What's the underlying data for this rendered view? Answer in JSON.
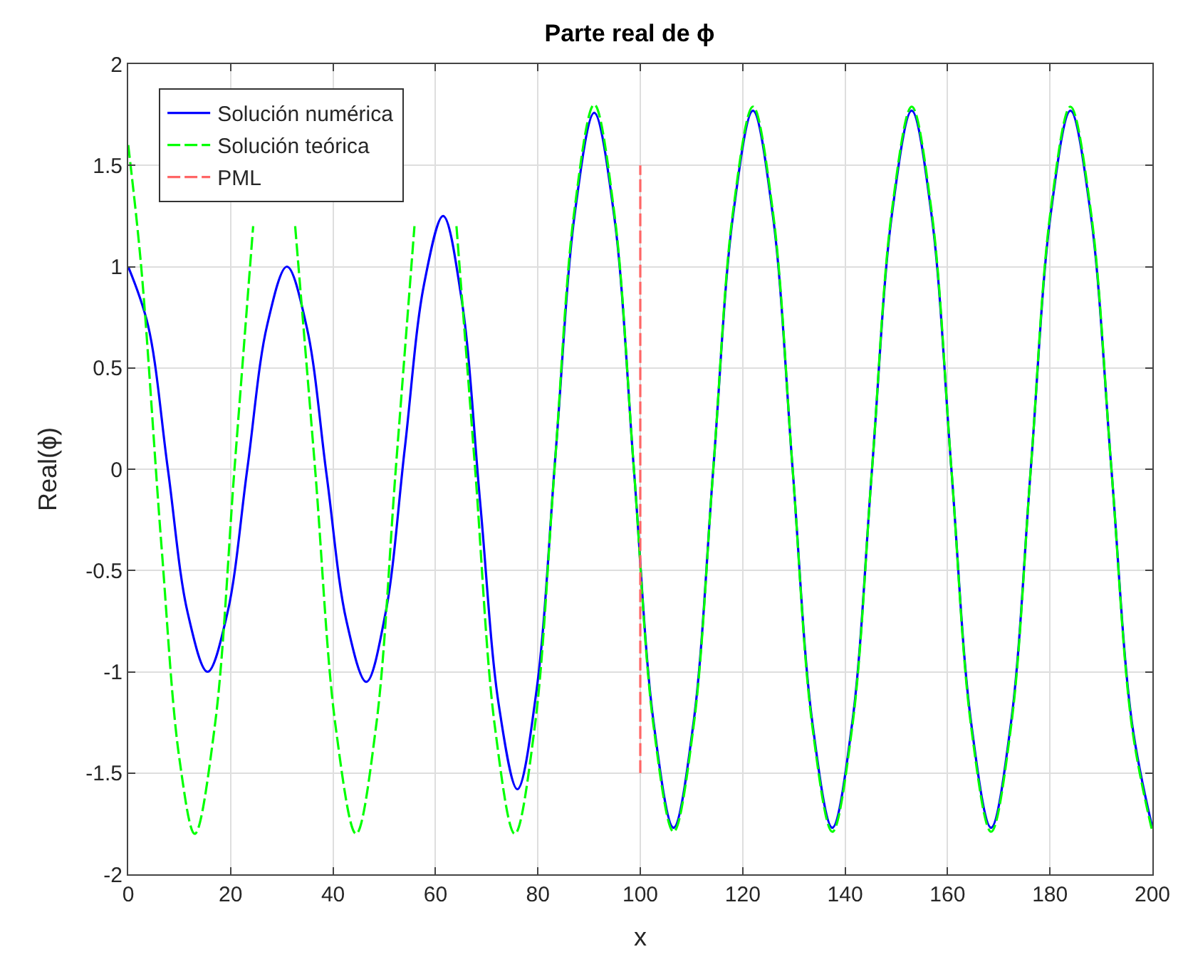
{
  "chart_data": {
    "type": "line",
    "title": "Parte real de ϕ",
    "xlabel": "x",
    "ylabel": "Real(ϕ)",
    "xlim": [
      0,
      200
    ],
    "ylim": [
      -2,
      2
    ],
    "xticks": [
      0,
      20,
      40,
      60,
      80,
      100,
      120,
      140,
      160,
      180,
      200
    ],
    "yticks": [
      -2,
      -1.5,
      -1,
      -0.5,
      0,
      0.5,
      1,
      1.5,
      2
    ],
    "grid": true,
    "legend": "top left",
    "marker": "none",
    "series": [
      {
        "name": "Solución numérica",
        "color": "#0000ff",
        "line_style": "solid",
        "x": [
          0,
          3.875,
          7.75,
          11.625,
          15.5,
          19.375,
          23.25,
          27.125,
          31,
          34.875,
          38.75,
          42.625,
          46.5,
          50.25,
          54,
          57.75,
          61.5,
          65.1,
          68.75,
          72.4,
          76,
          79.75,
          83.5,
          87.25,
          91,
          94.9,
          98.75,
          102.6,
          106.5,
          110.4,
          114.25,
          118.1,
          122,
          125.9,
          129.75,
          133.6,
          137.5,
          141.4,
          145.25,
          149.1,
          153,
          156.9,
          160.75,
          164.6,
          168.5,
          172.4,
          176.25,
          180.1,
          184,
          188,
          192,
          196,
          200
        ],
        "values": [
          1,
          0.71,
          0,
          -0.71,
          -1,
          -0.71,
          0,
          0.71,
          1,
          0.7,
          -0.03,
          -0.75,
          -1.05,
          -0.71,
          0.1,
          0.91,
          1.25,
          0.84,
          -0.17,
          -1.17,
          -1.58,
          -1.09,
          0.09,
          1.27,
          1.76,
          1.25,
          0,
          -1.25,
          -1.77,
          -1.25,
          0,
          1.25,
          1.77,
          1.25,
          0,
          -1.25,
          -1.77,
          -1.25,
          0,
          1.25,
          1.77,
          1.25,
          0,
          -1.25,
          -1.77,
          -1.25,
          0,
          1.25,
          1.77,
          1.25,
          0,
          -1.25,
          -1.77
        ]
      },
      {
        "name": "Solución teórica",
        "color": "#00ff00",
        "line_style": "dashed",
        "x": [
          0,
          2.5,
          6.5,
          10,
          13,
          16.9,
          20.75,
          24.4,
          28.5,
          32.6,
          36.5,
          40.5,
          44.5,
          48.4,
          52.25,
          55.9,
          60,
          64.1,
          67.75,
          71.6,
          75.5,
          79.4,
          83.25,
          87.1,
          91,
          94.9,
          98.75,
          102.6,
          106.5,
          110.4,
          114.25,
          118.1,
          122,
          125.9,
          129.75,
          133.6,
          137.5,
          141.4,
          145.25,
          149.1,
          153,
          156.9,
          160.75,
          164.6,
          168.5,
          172.4,
          176.25,
          180.1,
          184,
          188,
          192,
          196,
          200
        ],
        "values": [
          1.6,
          1.01,
          -0.38,
          -1.43,
          -1.8,
          -1.27,
          0,
          1.2,
          null,
          1.2,
          0,
          -1.27,
          -1.8,
          -1.27,
          0,
          1.2,
          null,
          1.2,
          0,
          -1.27,
          -1.8,
          -1.27,
          0,
          1.27,
          1.8,
          1.27,
          0,
          -1.27,
          -1.79,
          -1.27,
          0,
          1.27,
          1.79,
          1.27,
          0,
          -1.27,
          -1.79,
          -1.27,
          0,
          1.27,
          1.79,
          1.27,
          0,
          -1.27,
          -1.79,
          -1.27,
          0,
          1.27,
          1.79,
          1.27,
          0,
          -1.27,
          -1.79
        ]
      },
      {
        "name": "PML",
        "color": "#ff6666",
        "line_style": "dashed",
        "x": [
          100,
          100
        ],
        "values": [
          -1.5,
          1.5
        ]
      }
    ]
  }
}
